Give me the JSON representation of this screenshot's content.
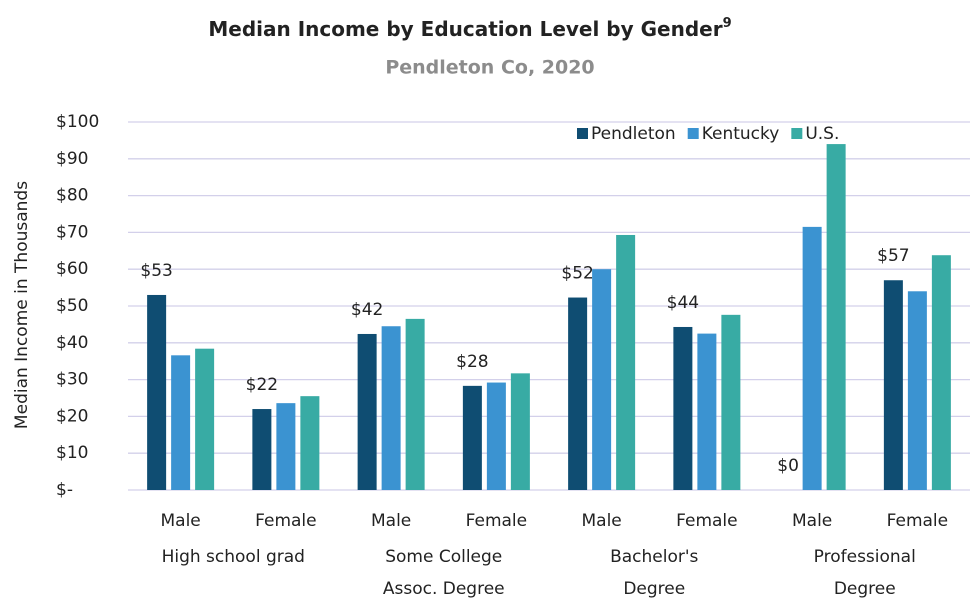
{
  "chart_data": {
    "type": "bar",
    "title": "Median Income by Education Level by Gender",
    "title_note": "9",
    "subtitle": "Pendleton Co, 2020",
    "y_label": "Median Income in Thousands",
    "categories": [
      "Male",
      "Female",
      "Male",
      "Female",
      "Male",
      "Female",
      "Male",
      "Female"
    ],
    "groups": [
      [
        "High school grad"
      ],
      [
        "Some College",
        "Assoc. Degree"
      ],
      [
        "Bachelor's",
        "Degree"
      ],
      [
        "Professional",
        "Degree"
      ]
    ],
    "series": [
      {
        "name": "Pendleton",
        "color": "#0f4d72",
        "values": [
          53,
          22,
          42.4,
          28.3,
          52.3,
          44.3,
          0,
          57
        ],
        "value_labels": [
          "$53",
          "$22",
          "$42",
          "$28",
          "$52",
          "$44",
          "$0",
          "$57"
        ]
      },
      {
        "name": "Kentucky",
        "color": "#3b93d1",
        "values": [
          36.6,
          23.6,
          44.5,
          29.2,
          60,
          42.5,
          71.5,
          54
        ]
      },
      {
        "name": "U.S.",
        "color": "#38aba4",
        "values": [
          38.4,
          25.5,
          46.5,
          31.7,
          69.3,
          47.6,
          94,
          63.8
        ]
      }
    ],
    "ylim": [
      0,
      100
    ],
    "yticks": [
      {
        "value": 0,
        "label": "$-"
      },
      {
        "value": 10,
        "label": "$10"
      },
      {
        "value": 20,
        "label": "$20"
      },
      {
        "value": 30,
        "label": "$30"
      },
      {
        "value": 40,
        "label": "$40"
      },
      {
        "value": 50,
        "label": "$50"
      },
      {
        "value": 60,
        "label": "$60"
      },
      {
        "value": 70,
        "label": "$70"
      },
      {
        "value": 80,
        "label": "$80"
      },
      {
        "value": 90,
        "label": "$90"
      },
      {
        "value": 100,
        "label": "$100"
      }
    ],
    "grid": true,
    "legend": "top-right"
  }
}
